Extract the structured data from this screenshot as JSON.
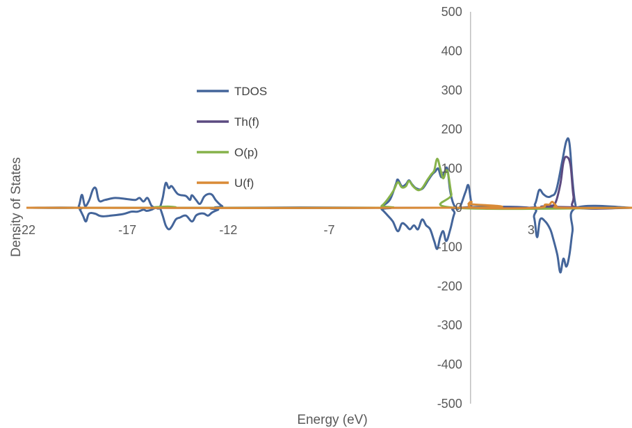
{
  "chart_data": {
    "type": "line",
    "title": "",
    "xlabel": "Energy (eV)",
    "ylabel": "Density of States",
    "xlim": [
      -22,
      8
    ],
    "ylim": [
      -500,
      500
    ],
    "x_ticks": [
      -22,
      -17,
      -12,
      -7,
      -2,
      3
    ],
    "x_tick_labels": [
      "-22",
      "-17",
      "-12",
      "-7",
      "",
      "3"
    ],
    "y_ticks": [
      -500,
      -400,
      -300,
      -200,
      -100,
      0,
      100,
      200,
      300,
      400,
      500
    ],
    "y_tick_labels": [
      "-500",
      "-400",
      "-300",
      "-200",
      "-100",
      "0",
      "100",
      "200",
      "300",
      "400",
      "500"
    ],
    "grid": false,
    "legend_position": "left",
    "colors": {
      "TDOS": "#44659a",
      "Th(f)": "#5c4a80",
      "O(p)": "#86b24a",
      "U(f)": "#d98a36",
      "axis": "#bfbfbf"
    },
    "series": [
      {
        "name": "TDOS",
        "points": [
          [
            -22,
            0
          ],
          [
            -19.6,
            0
          ],
          [
            -19.4,
            5
          ],
          [
            -19.25,
            33
          ],
          [
            -19.1,
            5
          ],
          [
            -18.9,
            18
          ],
          [
            -18.7,
            47
          ],
          [
            -18.55,
            48
          ],
          [
            -18.4,
            18
          ],
          [
            -18.1,
            20
          ],
          [
            -17.6,
            25
          ],
          [
            -17,
            22
          ],
          [
            -16.6,
            20
          ],
          [
            -16.4,
            25
          ],
          [
            -16.2,
            16
          ],
          [
            -16,
            25
          ],
          [
            -15.8,
            5
          ],
          [
            -15.6,
            0
          ],
          [
            -15.4,
            0
          ],
          [
            -15.25,
            25
          ],
          [
            -15.1,
            63
          ],
          [
            -14.95,
            50
          ],
          [
            -14.8,
            55
          ],
          [
            -14.5,
            35
          ],
          [
            -14.1,
            30
          ],
          [
            -13.9,
            20
          ],
          [
            -13.8,
            32
          ],
          [
            -13.6,
            20
          ],
          [
            -13.4,
            10
          ],
          [
            -13.2,
            28
          ],
          [
            -13,
            35
          ],
          [
            -12.8,
            33
          ],
          [
            -12.6,
            18
          ],
          [
            -12.3,
            4
          ],
          [
            -12,
            0
          ],
          [
            -4.6,
            0
          ],
          [
            -4.4,
            4
          ],
          [
            -4,
            20
          ],
          [
            -3.7,
            60
          ],
          [
            -3.6,
            72
          ],
          [
            -3.4,
            55
          ],
          [
            -3.2,
            60
          ],
          [
            -3.05,
            70
          ],
          [
            -2.9,
            60
          ],
          [
            -2.7,
            50
          ],
          [
            -2.4,
            48
          ],
          [
            -2.1,
            70
          ],
          [
            -1.9,
            85
          ],
          [
            -1.75,
            92
          ],
          [
            -1.6,
            100
          ],
          [
            -1.45,
            78
          ],
          [
            -1.3,
            90
          ],
          [
            -1.15,
            100
          ],
          [
            -1.0,
            40
          ],
          [
            -0.8,
            5
          ],
          [
            -0.55,
            0
          ],
          [
            -0.25,
            40
          ],
          [
            -0.1,
            57
          ],
          [
            0.05,
            10
          ],
          [
            0.2,
            0
          ],
          [
            2.9,
            0
          ],
          [
            3.2,
            10
          ],
          [
            3.4,
            45
          ],
          [
            3.6,
            35
          ],
          [
            3.8,
            28
          ],
          [
            4.0,
            30
          ],
          [
            4.25,
            45
          ],
          [
            4.55,
            120
          ],
          [
            4.75,
            170
          ],
          [
            4.9,
            165
          ],
          [
            5.05,
            70
          ],
          [
            5.2,
            8
          ],
          [
            5.4,
            0
          ],
          [
            8,
            0
          ]
        ],
        "neg_points": [
          [
            -22,
            0
          ],
          [
            -19.5,
            0
          ],
          [
            -19.35,
            -5
          ],
          [
            -19.2,
            -20
          ],
          [
            -19.05,
            -35
          ],
          [
            -18.9,
            -15
          ],
          [
            -18.6,
            -15
          ],
          [
            -18.4,
            -20
          ],
          [
            -18.2,
            -22
          ],
          [
            -17.8,
            -20
          ],
          [
            -17.2,
            -16
          ],
          [
            -16.8,
            -10
          ],
          [
            -16.5,
            -10
          ],
          [
            -16.2,
            -5
          ],
          [
            -16.05,
            -8
          ],
          [
            -15.8,
            -5
          ],
          [
            -15.6,
            0
          ],
          [
            -15.4,
            0
          ],
          [
            -15.25,
            -20
          ],
          [
            -15.1,
            -45
          ],
          [
            -14.95,
            -55
          ],
          [
            -14.8,
            -48
          ],
          [
            -14.6,
            -30
          ],
          [
            -14.4,
            -25
          ],
          [
            -14.1,
            -20
          ],
          [
            -13.8,
            -35
          ],
          [
            -13.6,
            -20
          ],
          [
            -13.4,
            -15
          ],
          [
            -13.2,
            -15
          ],
          [
            -13,
            -20
          ],
          [
            -12.8,
            -12
          ],
          [
            -12.5,
            -5
          ],
          [
            -12.2,
            0
          ],
          [
            -4.6,
            0
          ],
          [
            -4.4,
            -4
          ],
          [
            -4.1,
            -20
          ],
          [
            -3.85,
            -35
          ],
          [
            -3.6,
            -60
          ],
          [
            -3.4,
            -40
          ],
          [
            -3.2,
            -45
          ],
          [
            -3.0,
            -55
          ],
          [
            -2.8,
            -45
          ],
          [
            -2.6,
            -55
          ],
          [
            -2.4,
            -30
          ],
          [
            -2.2,
            -45
          ],
          [
            -2.0,
            -55
          ],
          [
            -1.8,
            -85
          ],
          [
            -1.65,
            -105
          ],
          [
            -1.5,
            -75
          ],
          [
            -1.35,
            -60
          ],
          [
            -1.2,
            -85
          ],
          [
            -1.0,
            -55
          ],
          [
            -0.8,
            -15
          ],
          [
            -0.55,
            0
          ],
          [
            2.9,
            0
          ],
          [
            3.15,
            -25
          ],
          [
            3.3,
            -75
          ],
          [
            3.45,
            -30
          ],
          [
            3.7,
            -35
          ],
          [
            3.95,
            -55
          ],
          [
            4.1,
            -80
          ],
          [
            4.3,
            -120
          ],
          [
            4.45,
            -165
          ],
          [
            4.6,
            -130
          ],
          [
            4.75,
            -150
          ],
          [
            4.9,
            -120
          ],
          [
            5.05,
            -60
          ],
          [
            5.25,
            0
          ],
          [
            8,
            0
          ]
        ]
      },
      {
        "name": "Th(f)",
        "points": [
          [
            -22,
            0
          ],
          [
            3.2,
            0
          ],
          [
            3.5,
            3
          ],
          [
            3.9,
            5
          ],
          [
            4.2,
            12
          ],
          [
            4.45,
            60
          ],
          [
            4.6,
            115
          ],
          [
            4.75,
            130
          ],
          [
            4.95,
            110
          ],
          [
            5.1,
            30
          ],
          [
            5.3,
            0
          ],
          [
            8,
            0
          ]
        ]
      },
      {
        "name": "O(p)",
        "points": [
          [
            -22,
            0
          ],
          [
            -15.2,
            0
          ],
          [
            -15.0,
            3
          ],
          [
            -14.8,
            0
          ],
          [
            -4.7,
            0
          ],
          [
            -4.4,
            5
          ],
          [
            -4.1,
            22
          ],
          [
            -3.8,
            45
          ],
          [
            -3.6,
            65
          ],
          [
            -3.4,
            52
          ],
          [
            -3.2,
            55
          ],
          [
            -3.05,
            68
          ],
          [
            -2.85,
            55
          ],
          [
            -2.6,
            45
          ],
          [
            -2.4,
            50
          ],
          [
            -2.15,
            70
          ],
          [
            -1.95,
            85
          ],
          [
            -1.8,
            95
          ],
          [
            -1.65,
            125
          ],
          [
            -1.5,
            100
          ],
          [
            -1.35,
            75
          ],
          [
            -1.15,
            95
          ],
          [
            -0.95,
            35
          ],
          [
            -0.75,
            0
          ],
          [
            8,
            0
          ]
        ]
      },
      {
        "name": "U(f)",
        "points": [
          [
            -22,
            0
          ],
          [
            -0.2,
            0
          ],
          [
            -0.1,
            10
          ],
          [
            0.05,
            15
          ],
          [
            0.2,
            0
          ],
          [
            3.3,
            0
          ],
          [
            3.7,
            8
          ],
          [
            3.9,
            8
          ],
          [
            4.05,
            15
          ],
          [
            4.25,
            5
          ],
          [
            4.5,
            0
          ],
          [
            8,
            0
          ]
        ]
      }
    ]
  }
}
